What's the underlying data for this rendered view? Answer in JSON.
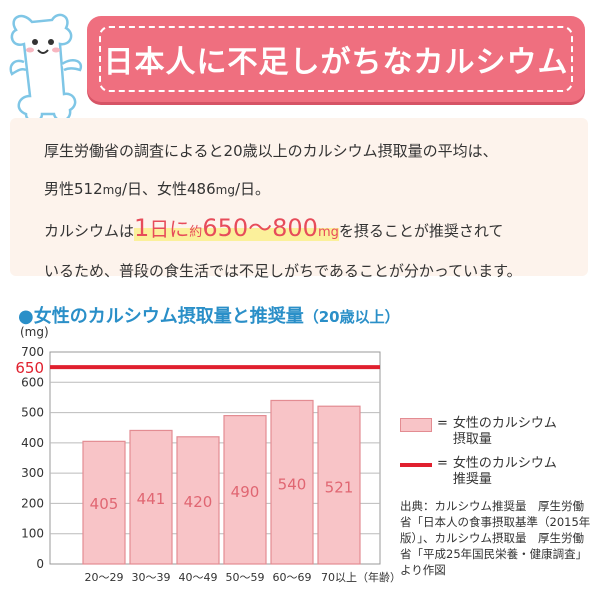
{
  "header": {
    "title": "日本人に不足しがちなカルシウム"
  },
  "info": {
    "line1": "厚生労働省の調査によると20歳以上のカルシウム摂取量の平均は、",
    "line2_male_label": "男性512",
    "line2_unit1": "mg",
    "line2_mid": "/日、女性486",
    "line2_unit2": "mg",
    "line2_end": "/日。",
    "line3_pre": "カルシウムは",
    "hl_num1": "1",
    "hl_text1": "日に",
    "hl_small": "約",
    "hl_range": "650〜800",
    "hl_unit": "mg",
    "line3_post": "を摂ることが推奨されて",
    "line4": "いるため、普段の食生活では不足しがちであることが分かっています。"
  },
  "chart_title": {
    "main": "●女性のカルシウム摂取量と推奨量",
    "sub": "（20歳以上）"
  },
  "chart_data": {
    "type": "bar",
    "categories": [
      "20〜29",
      "30〜39",
      "40〜49",
      "50〜59",
      "60〜69",
      "70以上"
    ],
    "values": [
      405,
      441,
      420,
      490,
      540,
      521
    ],
    "ylabel": "(mg)",
    "xlabel": "（年齢）",
    "ylim": [
      0,
      700
    ],
    "yticks": [
      0,
      100,
      200,
      300,
      400,
      500,
      600,
      700
    ],
    "reference_line": {
      "value": 650,
      "label": "650"
    },
    "grid": true,
    "bar_fill": "#f8c4c7",
    "bar_stroke": "#e38c92",
    "bar_label_color": "#e06672",
    "line_color": "#e0202e"
  },
  "legend": {
    "bar_label_1": "女性のカルシウム",
    "bar_label_2": "摂取量",
    "line_label_1": "女性のカルシウム",
    "line_label_2": "推奨量",
    "equals": "="
  },
  "source": {
    "text": "出典：カルシウム推奨量　厚生労働省「日本人の食事摂取基準（2015年版）」、カルシウム摂取量　厚生労働省「平成25年国民栄養・健康調査」より作図"
  },
  "colors": {
    "accent": "#ef6f7f",
    "info_bg": "#fdf3ec",
    "highlight": "#fbf09b",
    "title_blue": "#2a8fc8"
  }
}
